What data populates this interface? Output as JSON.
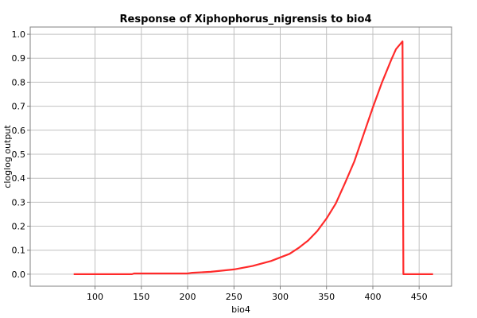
{
  "chart_data": {
    "type": "line",
    "title": "Response of Xiphophorus_nigrensis to bio4",
    "xlabel": "bio4",
    "ylabel": "cloglog output",
    "xlim": [
      30,
      485
    ],
    "ylim": [
      -0.05,
      1.03
    ],
    "xticks": [
      100,
      150,
      200,
      250,
      300,
      350,
      400,
      450
    ],
    "yticks": [
      0.0,
      0.1,
      0.2,
      0.3,
      0.4,
      0.5,
      0.6,
      0.7,
      0.8,
      0.9,
      1.0
    ],
    "ytick_labels": [
      "0.0",
      "0.1",
      "0.2",
      "0.3",
      "0.4",
      "0.5",
      "0.6",
      "0.7",
      "0.8",
      "0.9",
      "1.0"
    ],
    "grid": true,
    "series": [
      {
        "color": "#ff2a2a",
        "x": [
          77,
          140,
          142,
          200,
          205,
          225,
          250,
          270,
          290,
          310,
          320,
          330,
          340,
          350,
          360,
          370,
          380,
          390,
          400,
          410,
          420,
          425,
          432,
          433,
          465
        ],
        "y": [
          0.0,
          0.0,
          0.003,
          0.003,
          0.006,
          0.01,
          0.02,
          0.034,
          0.055,
          0.085,
          0.11,
          0.14,
          0.18,
          0.232,
          0.295,
          0.38,
          0.47,
          0.582,
          0.695,
          0.8,
          0.895,
          0.938,
          0.97,
          0.0,
          0.0
        ]
      }
    ]
  }
}
